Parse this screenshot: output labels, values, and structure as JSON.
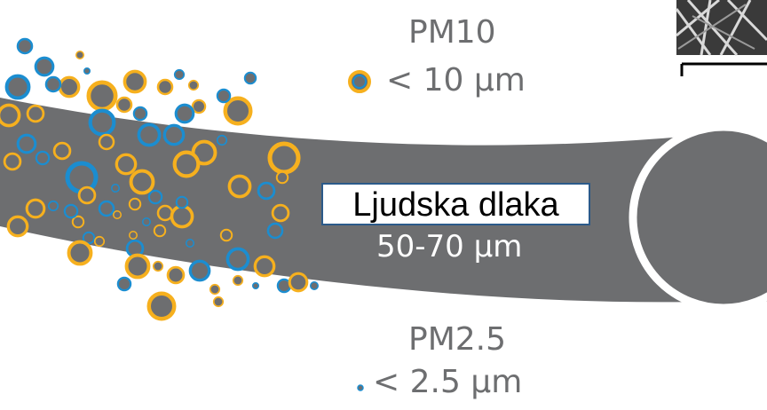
{
  "pm10": {
    "title": "PM10",
    "size": "< 10 µm"
  },
  "pm25": {
    "title": "PM2.5",
    "size": "< 2.5 µm"
  },
  "hair": {
    "label": "Ljudska dlaka",
    "size": "50-70 µm"
  },
  "colors": {
    "hair": "#6d6e70",
    "particle_core": "#6d6e70",
    "ring_orange": "#f6b01e",
    "ring_blue": "#1b8dd0",
    "label_border": "#2b5a8a"
  }
}
